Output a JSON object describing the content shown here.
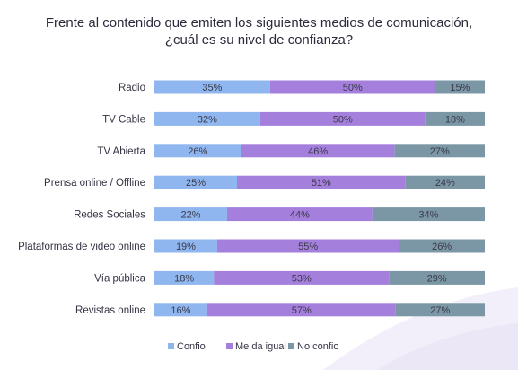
{
  "chart_data": {
    "type": "bar",
    "orientation": "horizontal",
    "stacked": true,
    "title_line1": "Frente al contenido que emiten los siguientes medios de comunicación,",
    "title_line2": "¿cuál es su nivel de confianza?",
    "categories": [
      "Radio",
      "TV Cable",
      "TV Abierta",
      "Prensa online / Offline",
      "Redes Sociales",
      "Plataformas de video online",
      "Vía pública",
      "Revistas online"
    ],
    "series": [
      {
        "name": "Confio",
        "color": "#8fb6ee",
        "values": [
          35,
          32,
          26,
          25,
          22,
          19,
          18,
          16
        ],
        "labels": [
          "35%",
          "32%",
          "26%",
          "25%",
          "22%",
          "19%",
          "18%",
          "16%"
        ]
      },
      {
        "name": "Me da igual",
        "color": "#a57fdc",
        "values": [
          50,
          50,
          46,
          51,
          44,
          55,
          53,
          57
        ],
        "labels": [
          "50%",
          "50%",
          "46%",
          "51%",
          "44%",
          "55%",
          "53%",
          "57%"
        ]
      },
      {
        "name": "No confio",
        "color": "#7b97a6",
        "values": [
          15,
          18,
          27,
          24,
          34,
          26,
          29,
          27
        ],
        "labels": [
          "15%",
          "18%",
          "27%",
          "24%",
          "34%",
          "26%",
          "29%",
          "27%"
        ]
      }
    ],
    "legend_position": "bottom",
    "grid": false
  }
}
